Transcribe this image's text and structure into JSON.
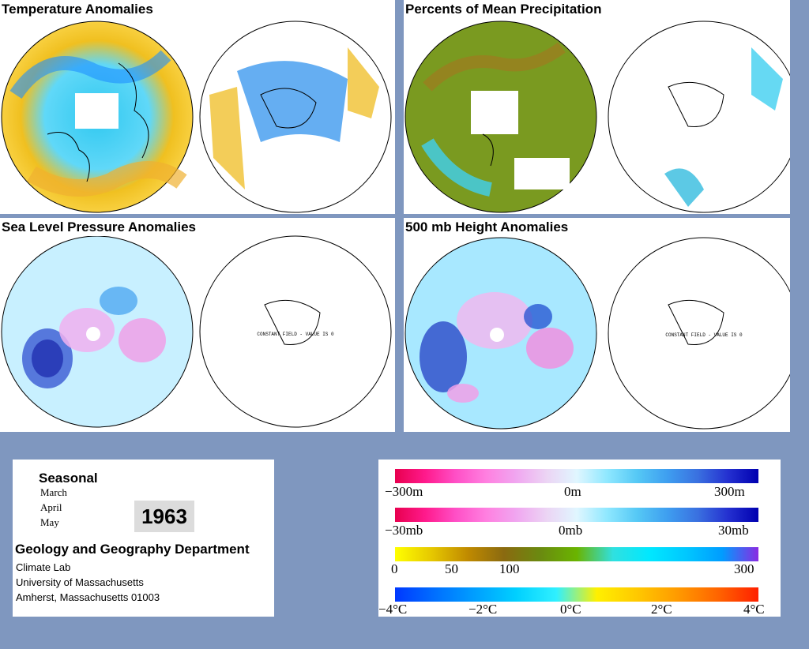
{
  "panels": {
    "temperature": {
      "title": "Temperature Anomalies"
    },
    "precipitation": {
      "title": "Percents of Mean Precipitation"
    },
    "slp": {
      "title": "Sea Level Pressure Anomalies",
      "constant_text": "CONSTANT FIELD - VALUE IS 0"
    },
    "height500": {
      "title": "500 mb Height Anomalies",
      "constant_text": "CONSTANT FIELD - VALUE IS 0"
    }
  },
  "info": {
    "period_label": "Seasonal",
    "months": [
      "March",
      "April",
      "May"
    ],
    "year": "1963",
    "department": "Geology and Geography Department",
    "address_lines": [
      "Climate Lab",
      "University of Massachusetts",
      "Amherst, Massachusetts 01003"
    ]
  },
  "legend": {
    "height_scale": {
      "min_label": "−300m",
      "mid_label": "0m",
      "max_label": "300m",
      "colors": [
        "#e8004f",
        "#ff1a8c",
        "#ff4fc6",
        "#ff7fe0",
        "#f0a6f0",
        "#ecd4f4",
        "#e0f6ff",
        "#8fe8ff",
        "#55c8f5",
        "#3e9ef0",
        "#3a70e0",
        "#2430d0",
        "#0000b0"
      ]
    },
    "pressure_scale": {
      "min_label": "−30mb",
      "mid_label": "0mb",
      "max_label": "30mb",
      "colors": [
        "#e8004f",
        "#ff1a8c",
        "#ff4fc6",
        "#ff7fe0",
        "#f0a6f0",
        "#ecd4f4",
        "#e0f6ff",
        "#8fe8ff",
        "#55c8f5",
        "#3e9ef0",
        "#3a70e0",
        "#2430d0",
        "#0000b0"
      ]
    },
    "precip_scale": {
      "labels": [
        "0",
        "50",
        "100",
        "300"
      ],
      "colors": [
        "#ffff00",
        "#e6c800",
        "#c08a00",
        "#8a6a10",
        "#6a8a10",
        "#6ab400",
        "#30e0e0",
        "#00e8ff",
        "#00c8ff",
        "#009cff",
        "#8a2be2"
      ]
    },
    "temp_scale": {
      "labels": [
        "−4°C",
        "−2°C",
        "0°C",
        "2°C",
        "4°C"
      ],
      "colors": [
        "#0038ff",
        "#0070ff",
        "#00a0ff",
        "#00d0ff",
        "#30f0ff",
        "#fff000",
        "#ffc800",
        "#ff9a00",
        "#ff6400",
        "#ff2000"
      ]
    }
  }
}
